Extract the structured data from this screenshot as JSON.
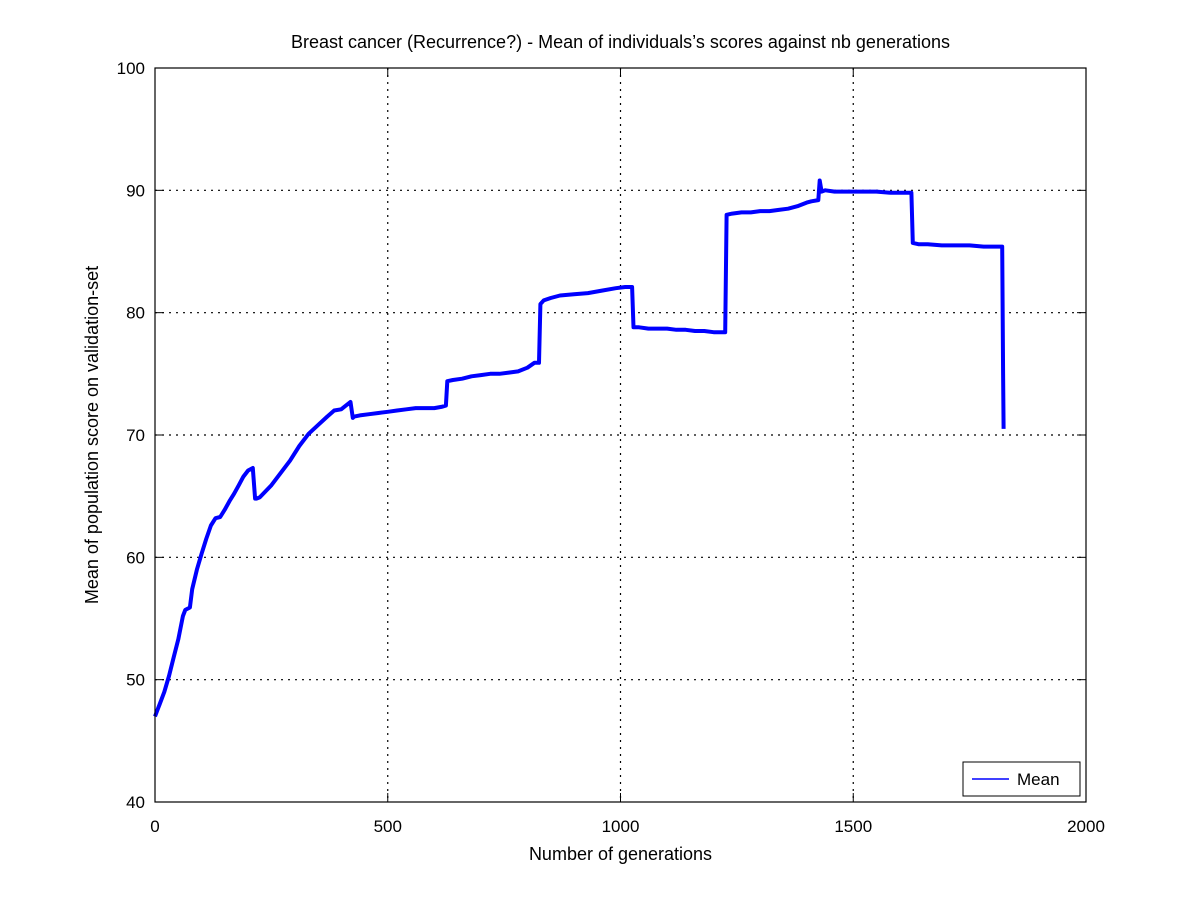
{
  "chart_data": {
    "type": "line",
    "title": "Breast cancer (Recurrence?) - Mean of individuals’s scores against nb generations",
    "xlabel": "Number of generations",
    "ylabel": "Mean of population score on validation-set",
    "xlim": [
      0,
      2000
    ],
    "ylim": [
      40,
      100
    ],
    "xticks": [
      0,
      500,
      1000,
      1500,
      2000
    ],
    "yticks": [
      40,
      50,
      60,
      70,
      80,
      90,
      100
    ],
    "grid": true,
    "legend_position": "bottom-right",
    "series": [
      {
        "name": "Mean",
        "color": "#0000ff",
        "x": [
          0,
          5,
          10,
          20,
          30,
          40,
          50,
          60,
          65,
          75,
          80,
          90,
          100,
          110,
          120,
          130,
          140,
          150,
          160,
          170,
          180,
          190,
          200,
          210,
          215,
          218,
          225,
          235,
          250,
          270,
          290,
          310,
          330,
          350,
          370,
          385,
          400,
          410,
          420,
          425,
          428,
          440,
          460,
          480,
          500,
          520,
          540,
          560,
          580,
          600,
          615,
          625,
          628,
          640,
          660,
          680,
          700,
          720,
          740,
          760,
          780,
          800,
          815,
          825,
          828,
          835,
          850,
          870,
          900,
          930,
          960,
          990,
          1010,
          1025,
          1028,
          1040,
          1060,
          1080,
          1100,
          1120,
          1140,
          1160,
          1180,
          1200,
          1215,
          1225,
          1228,
          1240,
          1260,
          1280,
          1300,
          1320,
          1340,
          1360,
          1380,
          1400,
          1410,
          1425,
          1428,
          1432,
          1440,
          1460,
          1490,
          1520,
          1550,
          1580,
          1600,
          1620,
          1625,
          1628,
          1640,
          1660,
          1690,
          1720,
          1750,
          1780,
          1800,
          1820,
          1822,
          1823
        ],
        "values": [
          47.0,
          47.5,
          48.0,
          49.0,
          50.3,
          51.8,
          53.3,
          55.2,
          55.7,
          55.9,
          57.4,
          59.0,
          60.3,
          61.5,
          62.6,
          63.2,
          63.3,
          63.9,
          64.6,
          65.2,
          65.9,
          66.6,
          67.1,
          67.3,
          64.8,
          64.8,
          64.9,
          65.3,
          65.9,
          66.9,
          67.9,
          69.1,
          70.1,
          70.8,
          71.5,
          72.0,
          72.1,
          72.4,
          72.7,
          71.4,
          71.5,
          71.6,
          71.7,
          71.8,
          71.9,
          72.0,
          72.1,
          72.2,
          72.2,
          72.2,
          72.3,
          72.4,
          74.4,
          74.5,
          74.6,
          74.8,
          74.9,
          75.0,
          75.0,
          75.1,
          75.2,
          75.5,
          75.9,
          75.9,
          80.7,
          81.0,
          81.2,
          81.4,
          81.5,
          81.6,
          81.8,
          82.0,
          82.1,
          82.1,
          78.8,
          78.8,
          78.7,
          78.7,
          78.7,
          78.6,
          78.6,
          78.5,
          78.5,
          78.4,
          78.4,
          78.4,
          88.0,
          88.1,
          88.2,
          88.2,
          88.3,
          88.3,
          88.4,
          88.5,
          88.7,
          89.0,
          89.1,
          89.2,
          90.8,
          89.9,
          90.0,
          89.9,
          89.9,
          89.9,
          89.9,
          89.8,
          89.8,
          89.8,
          89.8,
          85.7,
          85.6,
          85.6,
          85.5,
          85.5,
          85.5,
          85.4,
          85.4,
          85.4,
          75.0,
          70.5
        ]
      }
    ]
  }
}
